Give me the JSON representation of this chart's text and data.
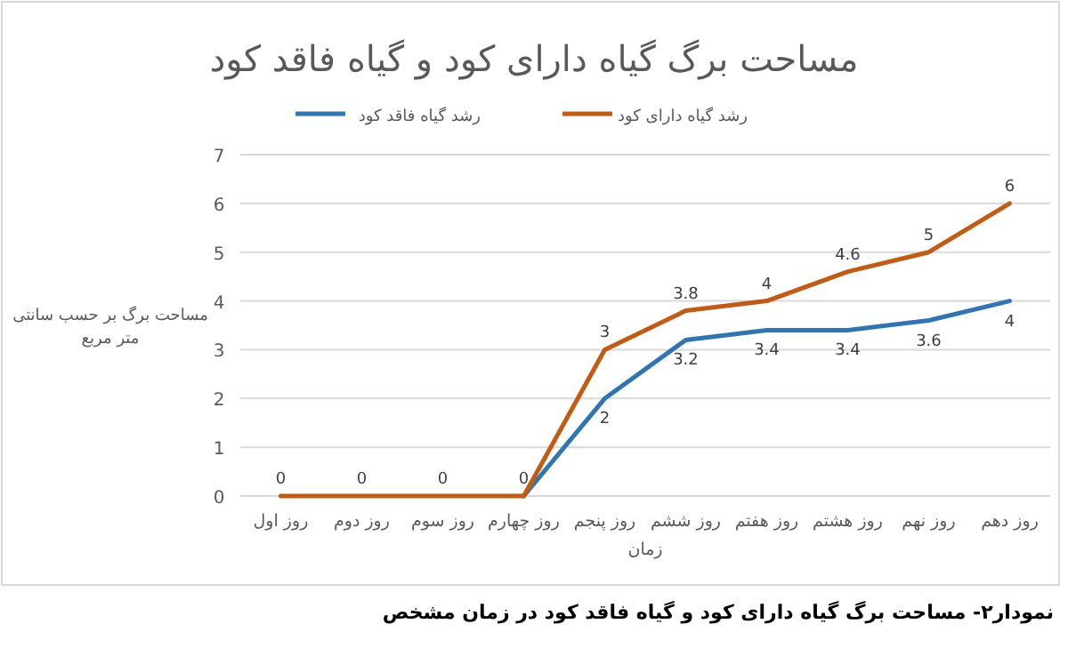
{
  "chart_data": {
    "type": "line",
    "title": "مساحت برگ گیاه دارای کود و گیاه فاقد کود",
    "xlabel": "زمان",
    "ylabel": "مساحت برگ بر حسب سانتی متر مربع",
    "categories": [
      "روز اول",
      "روز دوم",
      "روز سوم",
      "روز چهارم",
      "روز پنجم",
      "روز ششم",
      "روز هفتم",
      "روز هشتم",
      "روز نهم",
      "روز دهم"
    ],
    "series": [
      {
        "name": "رشد گیاه دارای کود",
        "color": "#c55a11",
        "values": [
          0,
          0,
          0,
          0,
          3,
          3.8,
          4,
          4.6,
          5,
          6
        ],
        "value_labels": [
          "0",
          "0",
          "0",
          "0",
          "3",
          "3.8",
          "4",
          "4.6",
          "5",
          "6"
        ]
      },
      {
        "name": "رشد گیاه فاقد کود",
        "color": "#2e75b6",
        "values": [
          null,
          null,
          null,
          0,
          2,
          3.2,
          3.4,
          3.4,
          3.6,
          4
        ],
        "value_labels": [
          null,
          null,
          null,
          null,
          "2",
          "3.2",
          "3.4",
          "3.4",
          "3.6",
          "4"
        ]
      }
    ],
    "ylim": [
      0,
      7
    ],
    "yticks": [
      0,
      1,
      2,
      3,
      4,
      5,
      6,
      7
    ],
    "grid": "y",
    "legend": "top",
    "marker": "none",
    "line_style": "solid",
    "annotations": [
      "نمودار۲- مساحت برگ گیاه دارای کود و گیاه فاقد کود در زمان مشخص"
    ]
  }
}
